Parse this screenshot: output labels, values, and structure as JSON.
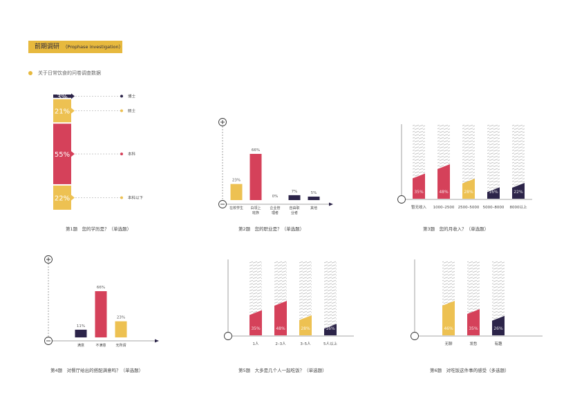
{
  "header": {
    "title": "前期调研",
    "subtitle": "（Prophase investigation）"
  },
  "intro": "关于日常饮食的问卷调查数据",
  "colors": {
    "navy": "#2c2449",
    "yellow": "#edc152",
    "red": "#d5415a",
    "hatch": "#bfbfbf",
    "axis": "#888888"
  },
  "questions": [
    "第1题　您的学历是？（单选题）",
    "第2题　您的职业是？（单选题）",
    "第3题　您的月收入？（单选题）",
    "第4题　对餐厅给出的搭配满意吗？（单选题）",
    "第5题　大多是几个人一起吃饭？（单选题）",
    "第6题　对吃饭这件事的感受（多选题）"
  ],
  "chart_data": [
    {
      "type": "bar",
      "categories": [
        "博士",
        "硕士",
        "本科",
        "本科以下"
      ],
      "values": [
        3,
        21,
        55,
        22
      ],
      "labels": [
        "3%",
        "21%",
        "55%",
        "22%"
      ],
      "colors": [
        "navy",
        "yellow",
        "red",
        "yellow"
      ]
    },
    {
      "type": "bar",
      "categories": [
        "在校学生",
        "白领上班族",
        "企业管理者",
        "自由职业者",
        "其他"
      ],
      "values": [
        23,
        66,
        0,
        7,
        5
      ],
      "labels": [
        "23%",
        "66%",
        "0%",
        "7%",
        "5%"
      ],
      "colors": [
        "yellow",
        "red",
        "navy",
        "navy",
        "navy"
      ]
    },
    {
      "type": "bar",
      "categories": [
        "暂无收入",
        "1000–2500",
        "2500–5000",
        "5000–8000",
        "8000以上"
      ],
      "values": [
        35,
        48,
        28,
        16,
        22
      ],
      "labels": [
        "35%",
        "48%",
        "28%",
        "16%",
        "22%"
      ],
      "colors": [
        "red",
        "red",
        "yellow",
        "navy",
        "navy"
      ]
    },
    {
      "type": "bar",
      "categories": [
        "满意",
        "不满意",
        "无所谓"
      ],
      "values": [
        11,
        66,
        23
      ],
      "labels": [
        "11%",
        "66%",
        "23%"
      ],
      "colors": [
        "navy",
        "red",
        "yellow"
      ]
    },
    {
      "type": "bar",
      "categories": [
        "1人",
        "2–3人",
        "3–5人",
        "5人以上"
      ],
      "values": [
        35,
        48,
        28,
        16
      ],
      "labels": [
        "35%",
        "48%",
        "28%",
        "16%"
      ],
      "colors": [
        "red",
        "red",
        "yellow",
        "navy"
      ]
    },
    {
      "type": "bar",
      "categories": [
        "无聊",
        "发愁",
        "有趣"
      ],
      "values": [
        46,
        35,
        26
      ],
      "labels": [
        "46%",
        "35%",
        "26%"
      ],
      "colors": [
        "yellow",
        "red",
        "navy"
      ]
    }
  ]
}
